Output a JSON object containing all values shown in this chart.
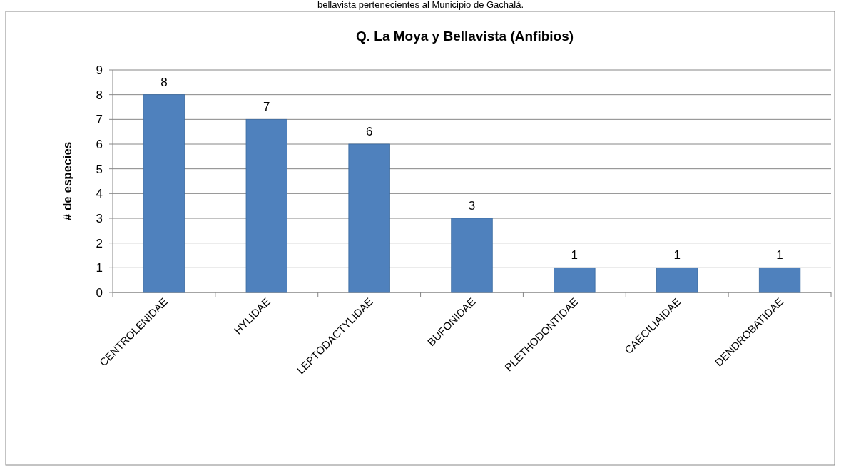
{
  "chart_data": {
    "type": "bar",
    "title": "Q. La Moya y Bellavista (Anfibios)",
    "ylabel": "# de especies",
    "annotations": [
      "bellavista pertenecientes al Municipio de Gachalá."
    ],
    "categories": [
      "CENTROLENIDAE",
      "HYLIDAE",
      "LEPTODACTYLIDAE",
      "BUFONIDAE",
      "PLETHODONTIDAE",
      "CAECILIAIDAE",
      "DENDROBATIDAE"
    ],
    "values": [
      8,
      7,
      6,
      3,
      1,
      1,
      1
    ],
    "color": "#4f81bd",
    "ylim": [
      0,
      9
    ],
    "yticks": [
      0,
      1,
      2,
      3,
      4,
      5,
      6,
      7,
      8,
      9
    ],
    "grid": "y",
    "data_labels": true
  }
}
